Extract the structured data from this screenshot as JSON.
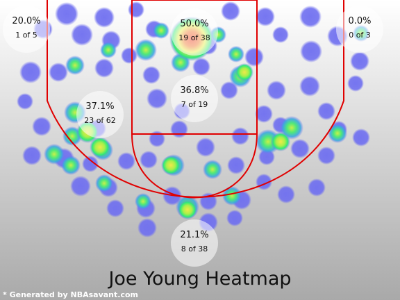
{
  "chart_data": {
    "type": "heatmap",
    "title": "Joe Young Heatmap",
    "subtitle": "",
    "zones": [
      {
        "id": "left-corner",
        "pct": "20.0%",
        "made_of": "1 of 5",
        "made": 1,
        "attempts": 5
      },
      {
        "id": "paint",
        "pct": "50.0%",
        "made_of": "19 of 38",
        "made": 19,
        "attempts": 38
      },
      {
        "id": "right-corner",
        "pct": "0.0%",
        "made_of": "0 of 3",
        "made": 0,
        "attempts": 3
      },
      {
        "id": "mid-range",
        "pct": "37.1%",
        "made_of": "23 of 62",
        "made": 23,
        "attempts": 62
      },
      {
        "id": "lane",
        "pct": "36.8%",
        "made_of": "7 of 19",
        "made": 7,
        "attempts": 19
      },
      {
        "id": "top-of-key",
        "pct": "21.1%",
        "made_of": "8 of 38",
        "made": 8,
        "attempts": 38
      }
    ],
    "colors": {
      "background_top": "#ffffff",
      "background_bottom": "#a9a9a9",
      "court_lines": "#e00000",
      "cold": "#6f6ff0",
      "warm": "#2ee87a",
      "hot": "#e8f04a",
      "hottest": "#f03a20"
    }
  },
  "footer": {
    "credit": "* Generated by NBAsavant.com"
  }
}
